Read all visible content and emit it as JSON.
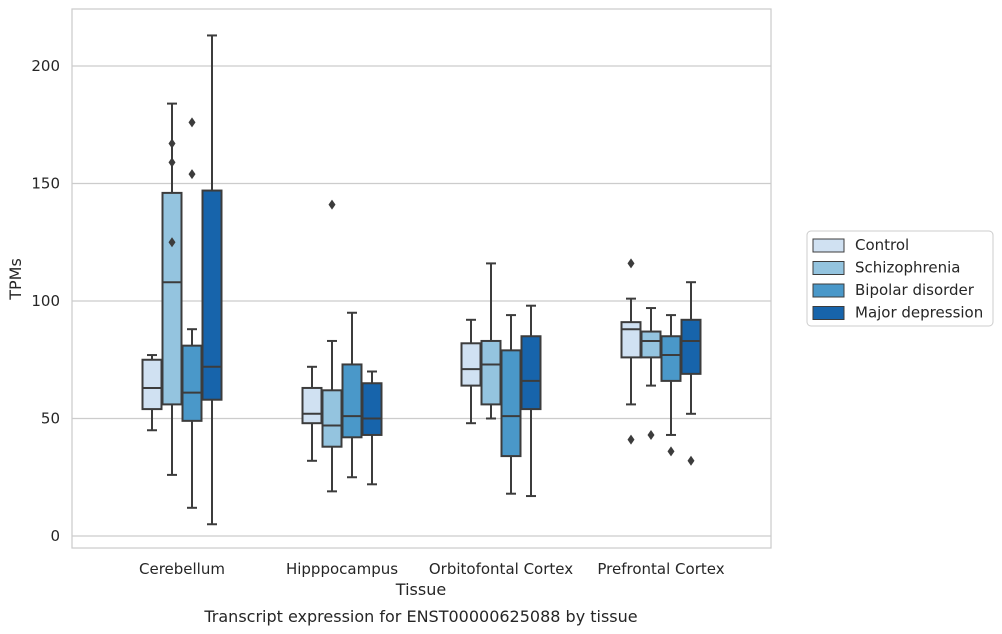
{
  "chart_data": {
    "type": "box",
    "title": "",
    "caption": "Transcript expression for ENST00000625088 by tissue",
    "xlabel": "Tissue",
    "ylabel": "TPMs",
    "ylim": [
      -5,
      225
    ],
    "yticks": [
      0,
      50,
      100,
      150,
      200
    ],
    "grid": "horizontal",
    "legend_position": "right",
    "categories": [
      "Cerebellum",
      "Hipppocampus",
      "Orbitofontal Cortex",
      "Prefrontal Cortex"
    ],
    "series": [
      {
        "name": "Control",
        "color": "#d0e1f2",
        "boxes": [
          {
            "whislo": 45,
            "q1": 54,
            "med": 63,
            "q3": 75,
            "whishi": 77,
            "fliers": []
          },
          {
            "whislo": 32,
            "q1": 48,
            "med": 52,
            "q3": 63,
            "whishi": 72,
            "fliers": []
          },
          {
            "whislo": 48,
            "q1": 64,
            "med": 71,
            "q3": 82,
            "whishi": 92,
            "fliers": []
          },
          {
            "whislo": 56,
            "q1": 76,
            "med": 88,
            "q3": 91,
            "whishi": 101,
            "fliers": [
              116,
              41
            ]
          }
        ]
      },
      {
        "name": "Schizophrenia",
        "color": "#94c4df",
        "boxes": [
          {
            "whislo": 26,
            "q1": 56,
            "med": 108,
            "q3": 146,
            "whishi": 184,
            "fliers": [
              125,
              159,
              167
            ]
          },
          {
            "whislo": 19,
            "q1": 38,
            "med": 47,
            "q3": 62,
            "whishi": 83,
            "fliers": [
              141
            ]
          },
          {
            "whislo": 50,
            "q1": 56,
            "med": 73,
            "q3": 83,
            "whishi": 116,
            "fliers": []
          },
          {
            "whislo": 64,
            "q1": 76,
            "med": 83,
            "q3": 87,
            "whishi": 97,
            "fliers": [
              43
            ]
          }
        ]
      },
      {
        "name": "Bipolar disorder",
        "color": "#4a98c9",
        "boxes": [
          {
            "whislo": 12,
            "q1": 49,
            "med": 61,
            "q3": 81,
            "whishi": 88,
            "fliers": [
              154,
              176
            ]
          },
          {
            "whislo": 25,
            "q1": 42,
            "med": 51,
            "q3": 73,
            "whishi": 95,
            "fliers": []
          },
          {
            "whislo": 18,
            "q1": 34,
            "med": 51,
            "q3": 79,
            "whishi": 94,
            "fliers": []
          },
          {
            "whislo": 43,
            "q1": 66,
            "med": 77,
            "q3": 85,
            "whishi": 94,
            "fliers": [
              36
            ]
          }
        ]
      },
      {
        "name": "Major depression",
        "color": "#1764ab",
        "boxes": [
          {
            "whislo": 5,
            "q1": 58,
            "med": 72,
            "q3": 147,
            "whishi": 213,
            "fliers": []
          },
          {
            "whislo": 22,
            "q1": 43,
            "med": 50,
            "q3": 65,
            "whishi": 70,
            "fliers": []
          },
          {
            "whislo": 17,
            "q1": 54,
            "med": 66,
            "q3": 85,
            "whishi": 98,
            "fliers": []
          },
          {
            "whislo": 52,
            "q1": 69,
            "med": 83,
            "q3": 92,
            "whishi": 108,
            "fliers": [
              32
            ]
          }
        ]
      }
    ]
  }
}
